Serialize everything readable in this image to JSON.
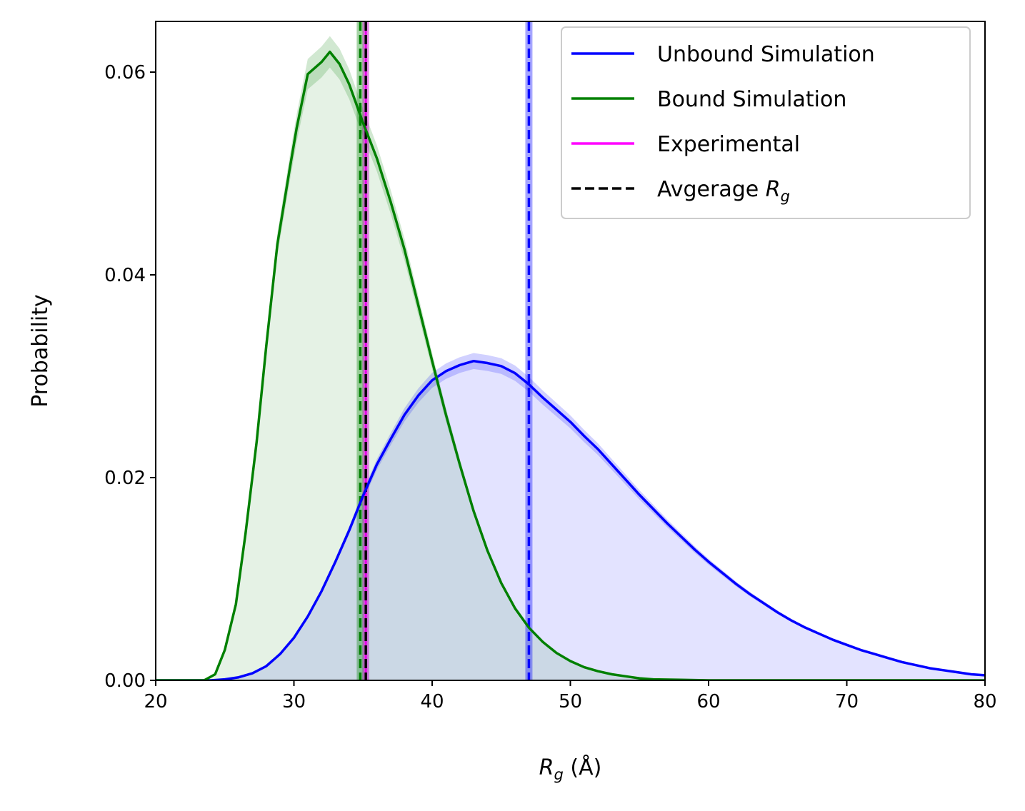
{
  "chart_data": {
    "type": "line",
    "title": "",
    "xlabel": "R",
    "xlabel_sub": "g",
    "xlabel_unit": " (Å)",
    "ylabel": "Probability",
    "xlim": [
      20,
      80
    ],
    "ylim": [
      0,
      0.065
    ],
    "x_ticks": [
      20,
      30,
      40,
      50,
      60,
      70,
      80
    ],
    "x_tick_labels": [
      "20",
      "30",
      "40",
      "50",
      "60",
      "70",
      "80"
    ],
    "y_ticks": [
      0,
      0.02,
      0.04,
      0.06
    ],
    "y_tick_labels": [
      "0.00",
      "0.02",
      "0.04",
      "0.06"
    ],
    "grid": false,
    "legend_position": "top-right",
    "legend": [
      {
        "label": "Unbound Simulation",
        "color": "#0000ff",
        "style": "solid"
      },
      {
        "label": "Bound Simulation",
        "color": "#008000",
        "style": "solid"
      },
      {
        "label": "Experimental",
        "color": "#ff00ff",
        "style": "solid"
      },
      {
        "label": "Avgerage R",
        "sub": "g",
        "color": "#000000",
        "style": "dashed"
      }
    ],
    "series": [
      {
        "name": "Unbound Simulation",
        "color": "#0000ff",
        "x": [
          20,
          24,
          25,
          26,
          27,
          28,
          29,
          30,
          31,
          32,
          33,
          34,
          35,
          36,
          37,
          38,
          39,
          40,
          41,
          42,
          43,
          44,
          45,
          46,
          47,
          48,
          49,
          50,
          51,
          52,
          53,
          54,
          55,
          56,
          57,
          58,
          59,
          60,
          61,
          62,
          63,
          64,
          65,
          66,
          67,
          68,
          69,
          70,
          71,
          72,
          73,
          74,
          75,
          76,
          77,
          78,
          79,
          80
        ],
        "y": [
          0,
          0,
          0.0001,
          0.0003,
          0.0007,
          0.0014,
          0.0026,
          0.0042,
          0.0063,
          0.0088,
          0.0117,
          0.0148,
          0.0182,
          0.0213,
          0.0238,
          0.0262,
          0.0281,
          0.0296,
          0.0305,
          0.0311,
          0.0315,
          0.0313,
          0.031,
          0.0303,
          0.0292,
          0.0279,
          0.0267,
          0.0255,
          0.0241,
          0.0228,
          0.0213,
          0.0198,
          0.0183,
          0.0169,
          0.0155,
          0.0142,
          0.0129,
          0.0117,
          0.0106,
          0.0095,
          0.0085,
          0.0076,
          0.0067,
          0.0059,
          0.0052,
          0.0046,
          0.004,
          0.0035,
          0.003,
          0.0026,
          0.0022,
          0.0018,
          0.0015,
          0.0012,
          0.001,
          0.0008,
          0.0006,
          0.0005
        ]
      },
      {
        "name": "Bound Simulation",
        "color": "#008000",
        "x": [
          20,
          23.5,
          24.3,
          25,
          25.8,
          26.5,
          27.3,
          28,
          28.8,
          29.7,
          30.2,
          31,
          32,
          32.6,
          33.3,
          34,
          35,
          36,
          37,
          38,
          39,
          40,
          41,
          42,
          43,
          44,
          45,
          46,
          47,
          48,
          49,
          50,
          51,
          52,
          53,
          54,
          55,
          56,
          58,
          60,
          65,
          80
        ],
        "y": [
          0,
          0,
          0.0006,
          0.003,
          0.0075,
          0.0145,
          0.0235,
          0.033,
          0.043,
          0.0505,
          0.0545,
          0.0598,
          0.061,
          0.062,
          0.0608,
          0.0588,
          0.055,
          0.0515,
          0.0472,
          0.0425,
          0.037,
          0.0315,
          0.0262,
          0.0213,
          0.0167,
          0.0128,
          0.0096,
          0.0071,
          0.0052,
          0.0038,
          0.0027,
          0.0019,
          0.0013,
          0.0009,
          0.0006,
          0.0004,
          0.0002,
          0.0001,
          5e-05,
          0,
          0,
          0
        ]
      }
    ],
    "vertical_lines": [
      {
        "series": "Bound Simulation average",
        "x": 34.8,
        "color": "#008000",
        "style": "dashed"
      },
      {
        "series": "Experimental",
        "x": 35.2,
        "color": "#ff00ff",
        "style": "solid"
      },
      {
        "series": "Experimental average",
        "x": 35.2,
        "color": "#000000",
        "style": "dashed"
      },
      {
        "series": "Unbound Simulation average",
        "x": 47.0,
        "color": "#0000ff",
        "style": "dashed"
      }
    ]
  }
}
